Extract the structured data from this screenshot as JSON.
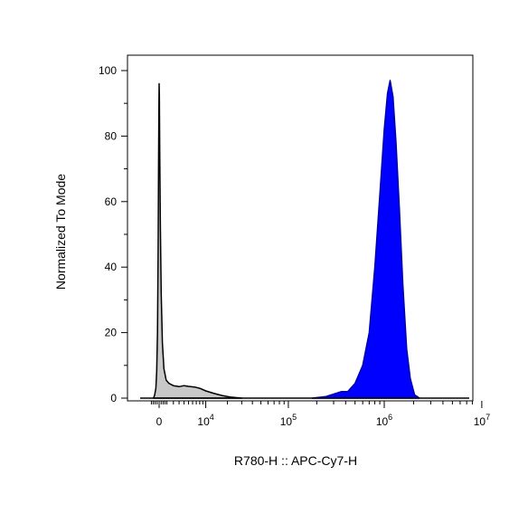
{
  "chart_data": {
    "type": "area",
    "xlabel": "R780-H :: APC-Cy7-H",
    "ylabel": "Normalized To Mode",
    "ylim": [
      0,
      100
    ],
    "x_scale": "biexponential",
    "y_ticks": [
      0,
      20,
      40,
      60,
      80,
      100
    ],
    "x_ticks": [
      {
        "value": 0,
        "label": "0",
        "exp": ""
      },
      {
        "value": 10000,
        "label": "10",
        "exp": "4"
      },
      {
        "value": 100000,
        "label": "10",
        "exp": "5"
      },
      {
        "value": 1000000,
        "label": "10",
        "exp": "6"
      },
      {
        "value": 10000000,
        "label": "10",
        "exp": "7"
      }
    ],
    "grid": false,
    "series": [
      {
        "color": "#c8c8c8",
        "edge": "#000000",
        "points": [
          [
            -700,
            0
          ],
          [
            -550,
            1
          ],
          [
            -400,
            3
          ],
          [
            -300,
            8
          ],
          [
            -200,
            20
          ],
          [
            -120,
            45
          ],
          [
            -60,
            72
          ],
          [
            -20,
            90
          ],
          [
            0,
            96
          ],
          [
            30,
            92
          ],
          [
            80,
            75
          ],
          [
            150,
            52
          ],
          [
            250,
            32
          ],
          [
            400,
            17
          ],
          [
            600,
            9
          ],
          [
            900,
            5.5
          ],
          [
            1300,
            4.5
          ],
          [
            2000,
            3.8
          ],
          [
            3000,
            3.5
          ],
          [
            4000,
            3.8
          ],
          [
            5000,
            3.6
          ],
          [
            6500,
            3.4
          ],
          [
            8000,
            3
          ],
          [
            10000,
            2.2
          ],
          [
            13000,
            1.5
          ],
          [
            17000,
            0.8
          ],
          [
            22000,
            0.3
          ],
          [
            30000,
            0
          ]
        ]
      },
      {
        "color": "#0000ff",
        "edge": "#0000aa",
        "points": [
          [
            180000,
            0
          ],
          [
            250000,
            0.5
          ],
          [
            320000,
            1.5
          ],
          [
            360000,
            2
          ],
          [
            420000,
            2
          ],
          [
            500000,
            4.5
          ],
          [
            600000,
            10
          ],
          [
            700000,
            20
          ],
          [
            800000,
            40
          ],
          [
            900000,
            62
          ],
          [
            1000000,
            82
          ],
          [
            1080000,
            93
          ],
          [
            1150000,
            97
          ],
          [
            1230000,
            92
          ],
          [
            1320000,
            78
          ],
          [
            1430000,
            58
          ],
          [
            1550000,
            35
          ],
          [
            1700000,
            15
          ],
          [
            1850000,
            6
          ],
          [
            2050000,
            1
          ],
          [
            2300000,
            0
          ]
        ]
      }
    ]
  }
}
